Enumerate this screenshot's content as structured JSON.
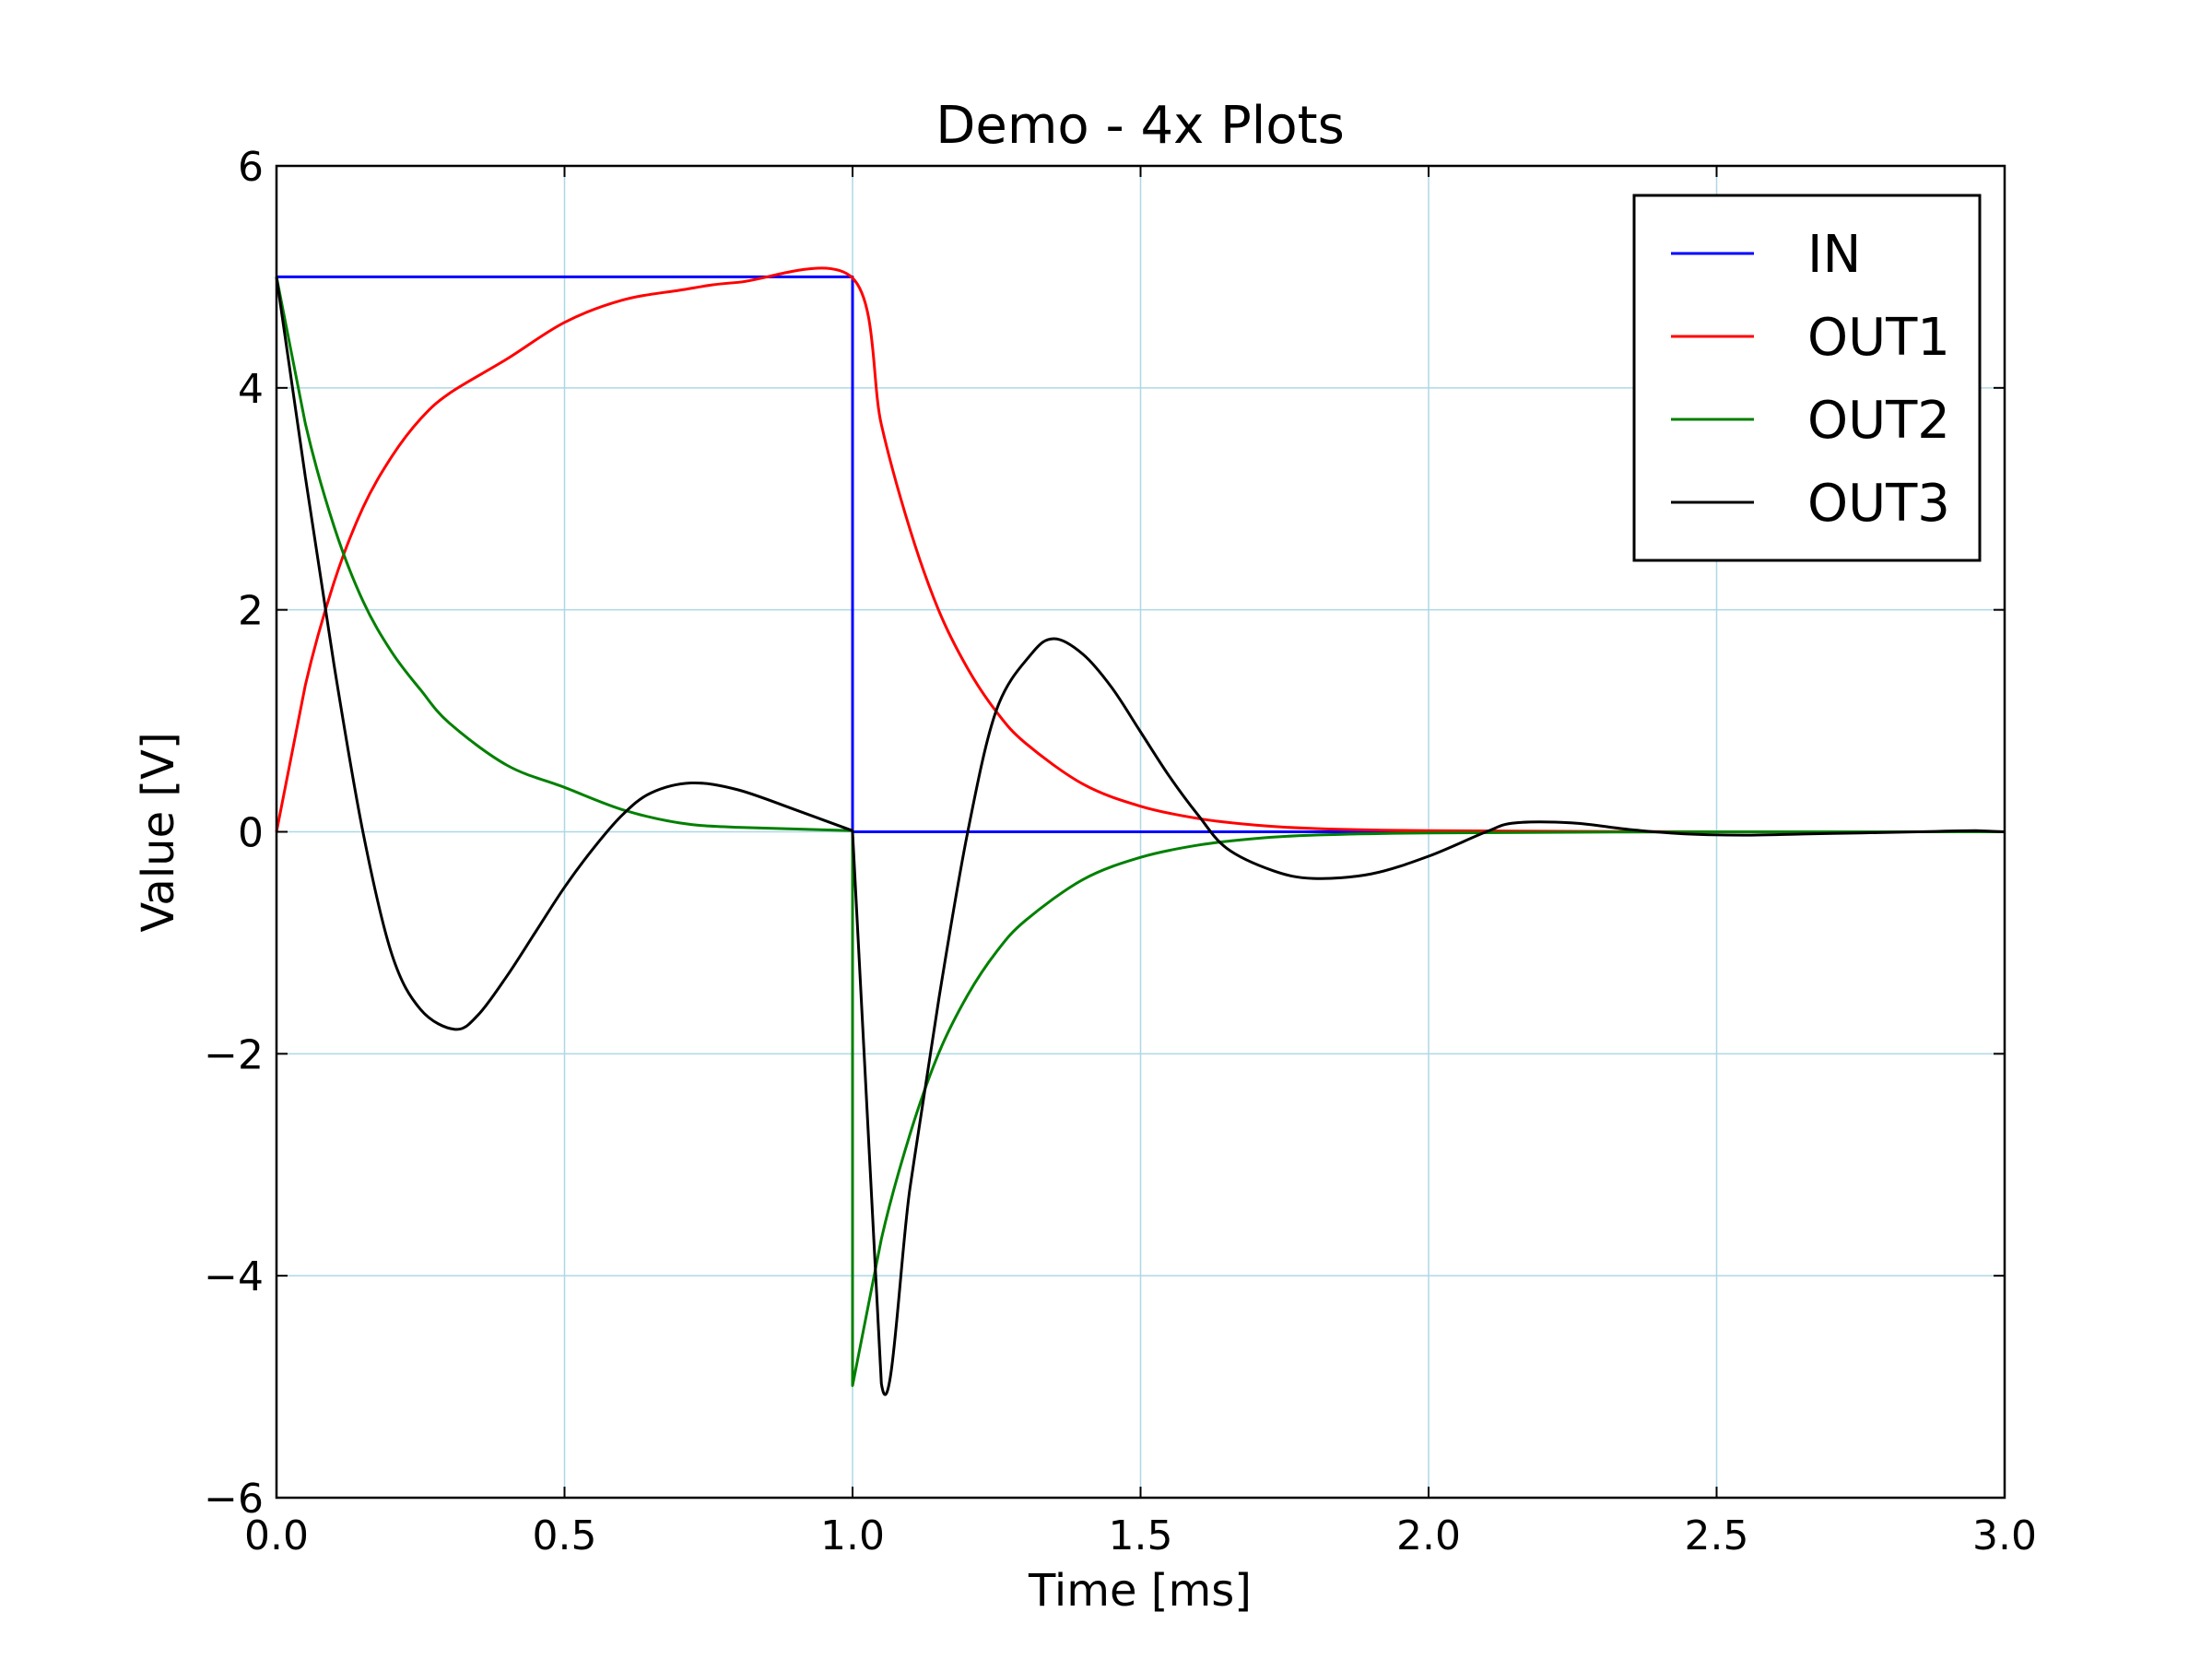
{
  "chart_data": {
    "type": "line",
    "title": "Demo - 4x Plots",
    "xlabel": "Time  [ms]",
    "ylabel": "Value [V]",
    "xlim": [
      0,
      3
    ],
    "ylim": [
      -6,
      6
    ],
    "grid": true,
    "grid_color": "#add8e6",
    "legend_position": "top-right",
    "xticks": [
      {
        "value": 0,
        "label": "0.0"
      },
      {
        "value": 0.5,
        "label": "0.5"
      },
      {
        "value": 1,
        "label": "1.0"
      },
      {
        "value": 1.5,
        "label": "1.5"
      },
      {
        "value": 2,
        "label": "2.0"
      },
      {
        "value": 2.5,
        "label": "2.5"
      },
      {
        "value": 3,
        "label": "3.0"
      }
    ],
    "yticks": [
      {
        "value": 6,
        "label": "6"
      },
      {
        "value": 4,
        "label": "4"
      },
      {
        "value": 2,
        "label": "2"
      },
      {
        "value": 0,
        "label": "0"
      },
      {
        "value": -2,
        "label": "−2"
      },
      {
        "value": -4,
        "label": "−4"
      },
      {
        "value": -6,
        "label": "−6"
      }
    ],
    "series": [
      {
        "name": "IN",
        "color": "#0000ff",
        "x": [
          0,
          1,
          1,
          3
        ],
        "y": [
          5,
          5,
          0,
          0
        ]
      },
      {
        "name": "OUT1",
        "color": "#ff0000",
        "x": [
          0,
          0.05,
          0.1,
          0.15,
          0.2,
          0.25,
          0.3,
          0.4,
          0.5,
          0.6,
          0.7,
          0.8,
          1.0,
          1.05,
          1.1,
          1.15,
          1.2,
          1.25,
          1.3,
          1.4,
          1.5,
          1.6,
          1.7,
          1.8,
          2.0,
          2.5,
          3.0
        ],
        "y": [
          0,
          1.32,
          2.25,
          2.92,
          3.38,
          3.72,
          3.95,
          4.26,
          4.59,
          4.79,
          4.88,
          4.95,
          4.99,
          3.67,
          2.72,
          1.99,
          1.47,
          1.08,
          0.8,
          0.43,
          0.23,
          0.12,
          0.06,
          0.03,
          0.01,
          0,
          0
        ]
      },
      {
        "name": "OUT2",
        "color": "#008000",
        "x": [
          0,
          0.05,
          0.1,
          0.15,
          0.2,
          0.25,
          0.3,
          0.4,
          0.5,
          0.6,
          0.7,
          0.8,
          1.0,
          1.0,
          1.05,
          1.1,
          1.15,
          1.2,
          1.25,
          1.3,
          1.4,
          1.5,
          1.6,
          1.7,
          1.8,
          2.0,
          2.5,
          3.0
        ],
        "y": [
          5,
          3.68,
          2.75,
          2.08,
          1.62,
          1.28,
          0.98,
          0.6,
          0.4,
          0.2,
          0.08,
          0.04,
          0.01,
          -4.99,
          -3.67,
          -2.72,
          -1.99,
          -1.47,
          -1.08,
          -0.8,
          -0.43,
          -0.23,
          -0.12,
          -0.06,
          -0.03,
          -0.01,
          0,
          0
        ]
      },
      {
        "name": "OUT3",
        "color": "#000000",
        "x": [
          0,
          0.05,
          0.1,
          0.15,
          0.2,
          0.25,
          0.31,
          0.35,
          0.4,
          0.45,
          0.5,
          0.55,
          0.6,
          0.65,
          0.72,
          0.8,
          0.9,
          1.0,
          1.0,
          1.05,
          1.1,
          1.15,
          1.2,
          1.25,
          1.31,
          1.35,
          1.4,
          1.45,
          1.5,
          1.55,
          1.6,
          1.65,
          1.73,
          1.8,
          1.9,
          2.0,
          2.1,
          2.15,
          2.25,
          2.35,
          2.45,
          2.55,
          2.65,
          2.75,
          2.85,
          2.95,
          3.0
        ],
        "y": [
          5,
          3.2,
          1.5,
          0.0,
          -1.1,
          -1.6,
          -1.78,
          -1.65,
          -1.3,
          -0.9,
          -0.5,
          -0.15,
          0.15,
          0.35,
          0.44,
          0.38,
          0.2,
          0.01,
          0,
          -4.97,
          -3.2,
          -1.5,
          0.0,
          1.1,
          1.6,
          1.74,
          1.6,
          1.3,
          0.9,
          0.5,
          0.15,
          -0.15,
          -0.35,
          -0.42,
          -0.38,
          -0.22,
          0.0,
          0.08,
          0.08,
          0.02,
          -0.02,
          -0.03,
          -0.02,
          -0.01,
          0.0,
          0.01,
          0.0
        ]
      }
    ]
  }
}
